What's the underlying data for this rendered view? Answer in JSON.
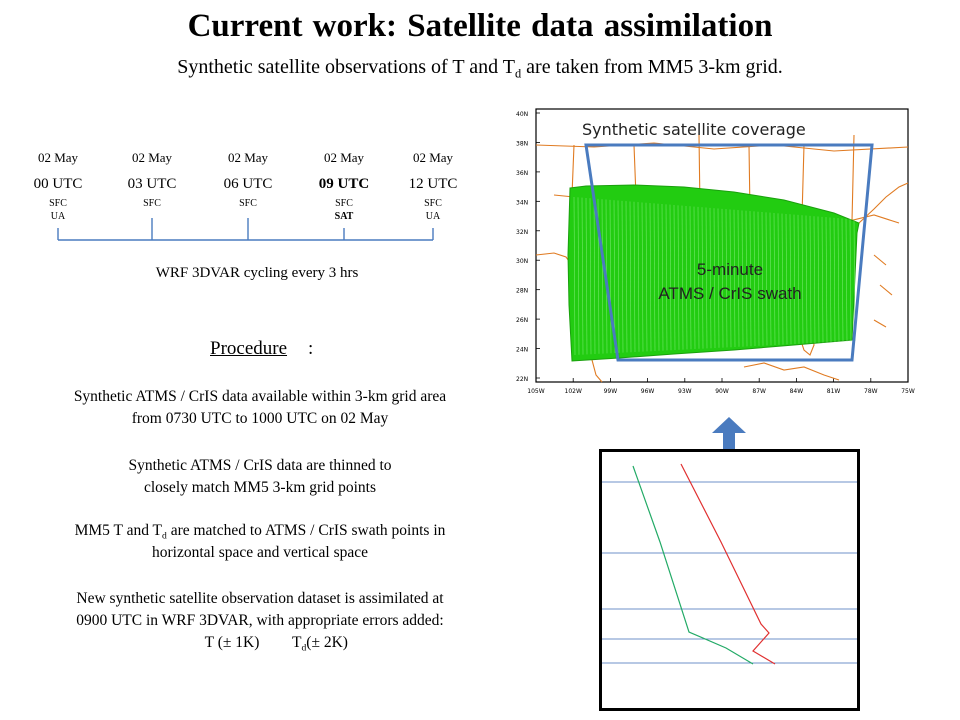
{
  "title": "Current work:  Satellite data assimilation",
  "subtitle": {
    "prefix": "Synthetic satellite observations of T and T",
    "sub": "d",
    "suffix": " are taken from MM5 3-km grid."
  },
  "timeline": [
    {
      "date": "02 May",
      "time": "00 UTC",
      "obs1": "SFC",
      "obs2": "UA",
      "bold": false
    },
    {
      "date": "02 May",
      "time": "03 UTC",
      "obs1": "SFC",
      "obs2": "",
      "bold": false
    },
    {
      "date": "02 May",
      "time": "06 UTC",
      "obs1": "SFC",
      "obs2": "",
      "bold": false
    },
    {
      "date": "02 May",
      "time": "09 UTC",
      "obs1": "SFC",
      "obs2": "SAT",
      "bold": true
    },
    {
      "date": "02 May",
      "time": "12 UTC",
      "obs1": "SFC",
      "obs2": "UA",
      "bold": false
    }
  ],
  "wrf_label": "WRF 3DVAR cycling every 3 hrs",
  "procedure": {
    "heading": "Procedure",
    "colon": ":",
    "p1": {
      "line1": "Synthetic ATMS / CrIS data available within 3-km grid area",
      "line2": "from 0730 UTC to 1000 UTC on 02 May"
    },
    "p2": {
      "line1": "Synthetic ATMS / CrIS data are thinned to",
      "line2": "closely match MM5 3-km grid points"
    },
    "p3": {
      "line1a": "MM5 T and T",
      "line1sub": "d",
      "line1b": " are matched to ATMS / CrIS swath points in",
      "line2": "horizontal space and vertical space"
    },
    "p4": {
      "line1": "New synthetic satellite observation dataset is assimilated at",
      "line2": "0900 UTC in WRF 3DVAR, with appropriate errors added:",
      "err_t": "T (± 1K)",
      "err_td_a": "T",
      "err_td_sub": "d",
      "err_td_b": " (± 2K)"
    }
  },
  "map": {
    "coverage_label": "Synthetic satellite coverage",
    "swath_line1": "5-minute",
    "swath_line2": "ATMS / CrIS swath",
    "lat_labels": [
      "40N",
      "38N",
      "36N",
      "34N",
      "32N",
      "30N",
      "28N",
      "26N",
      "24N",
      "22N"
    ],
    "lon_labels": [
      "105W",
      "102W",
      "99W",
      "96W",
      "93W",
      "90W",
      "87W",
      "84W",
      "81W",
      "78W",
      "75W"
    ],
    "colors": {
      "coastline": "#e07b22",
      "swath": "#22cc11",
      "coverage_box": "#4a7bbf"
    }
  },
  "sounding": {
    "colors": {
      "temperature": "#e03030",
      "dewpoint": "#22aa66",
      "levels": "#6f90c8"
    }
  },
  "colors": {
    "arrow": "#4a7bbf"
  }
}
